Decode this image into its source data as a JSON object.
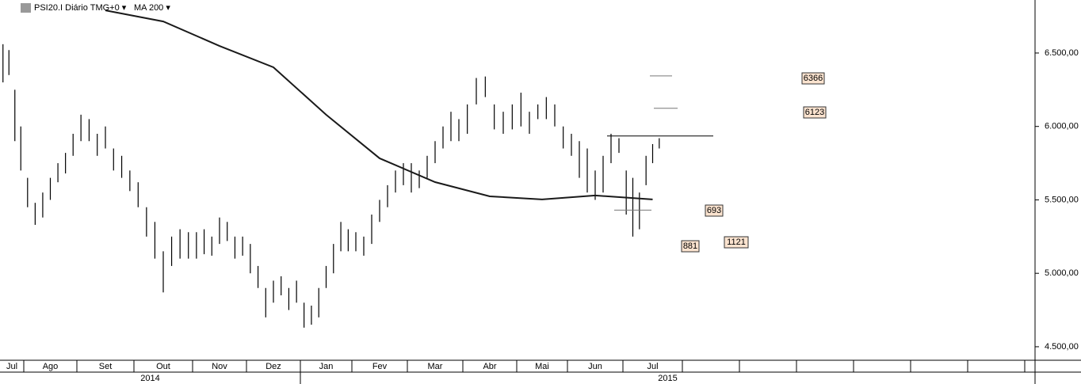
{
  "header": {
    "instrument": "PSI20.I Diário TMG+0",
    "indicator": "MA 200"
  },
  "chart_data": {
    "type": "ohlc",
    "ylim": [
      4408,
      6861
    ],
    "yticks": [
      {
        "value": 4500,
        "label": "4.500,00"
      },
      {
        "value": 5000,
        "label": "5.000,00"
      },
      {
        "value": 5500,
        "label": "5.500,00"
      },
      {
        "value": 6000,
        "label": "6.000,00"
      },
      {
        "value": 6500,
        "label": "6.500,00"
      }
    ],
    "color": "#000000",
    "ma_color": "#1a1a1a",
    "years": [
      {
        "label": "2014",
        "months": [
          {
            "label": "Jul",
            "ma": null,
            "bars": [
              {
                "high": 6560,
                "low": 6300
              },
              {
                "high": 6520,
                "low": 6350
              },
              {
                "high": 6250,
                "low": 5900
              },
              {
                "high": 6000,
                "low": 5700
              }
            ]
          },
          {
            "label": "Ago",
            "ma": null,
            "bars": [
              {
                "high": 5650,
                "low": 5450
              },
              {
                "high": 5480,
                "low": 5330
              },
              {
                "high": 5550,
                "low": 5380
              },
              {
                "high": 5650,
                "low": 5500
              },
              {
                "high": 5750,
                "low": 5620
              },
              {
                "high": 5820,
                "low": 5680
              },
              {
                "high": 5950,
                "low": 5800
              }
            ]
          },
          {
            "label": "Set",
            "ma": 6790,
            "bars": [
              {
                "high": 6080,
                "low": 5900
              },
              {
                "high": 6050,
                "low": 5900
              },
              {
                "high": 5950,
                "low": 5800
              },
              {
                "high": 6000,
                "low": 5850
              },
              {
                "high": 5850,
                "low": 5700
              },
              {
                "high": 5800,
                "low": 5650
              },
              {
                "high": 5700,
                "low": 5560
              }
            ]
          },
          {
            "label": "Out",
            "ma": 6715,
            "bars": [
              {
                "high": 5620,
                "low": 5450
              },
              {
                "high": 5450,
                "low": 5250
              },
              {
                "high": 5350,
                "low": 5100
              },
              {
                "high": 5150,
                "low": 4870
              },
              {
                "high": 5250,
                "low": 5050
              },
              {
                "high": 5300,
                "low": 5100
              },
              {
                "high": 5280,
                "low": 5100
              }
            ]
          },
          {
            "label": "Nov",
            "ma": 6548,
            "bars": [
              {
                "high": 5280,
                "low": 5100
              },
              {
                "high": 5300,
                "low": 5130
              },
              {
                "high": 5250,
                "low": 5120
              },
              {
                "high": 5380,
                "low": 5200
              },
              {
                "high": 5350,
                "low": 5220
              },
              {
                "high": 5250,
                "low": 5100
              },
              {
                "high": 5250,
                "low": 5120
              }
            ]
          },
          {
            "label": "Dez",
            "ma": 6403,
            "bars": [
              {
                "high": 5200,
                "low": 5000
              },
              {
                "high": 5050,
                "low": 4900
              },
              {
                "high": 4900,
                "low": 4700
              },
              {
                "high": 4950,
                "low": 4800
              },
              {
                "high": 4980,
                "low": 4850
              },
              {
                "high": 4900,
                "low": 4750
              },
              {
                "high": 4950,
                "low": 4800
              }
            ]
          }
        ]
      },
      {
        "label": "2015",
        "months": [
          {
            "label": "Jan",
            "ma": 6080,
            "bars": [
              {
                "high": 4800,
                "low": 4630
              },
              {
                "high": 4780,
                "low": 4650
              },
              {
                "high": 4900,
                "low": 4700
              },
              {
                "high": 5050,
                "low": 4900
              },
              {
                "high": 5200,
                "low": 5000
              },
              {
                "high": 5350,
                "low": 5150
              },
              {
                "high": 5300,
                "low": 5150
              }
            ]
          },
          {
            "label": "Fev",
            "ma": 5783,
            "bars": [
              {
                "high": 5280,
                "low": 5150
              },
              {
                "high": 5250,
                "low": 5120
              },
              {
                "high": 5400,
                "low": 5200
              },
              {
                "high": 5500,
                "low": 5350
              },
              {
                "high": 5600,
                "low": 5450
              },
              {
                "high": 5700,
                "low": 5550
              },
              {
                "high": 5750,
                "low": 5600
              }
            ]
          },
          {
            "label": "Mar",
            "ma": 5621,
            "bars": [
              {
                "high": 5750,
                "low": 5550
              },
              {
                "high": 5700,
                "low": 5580
              },
              {
                "high": 5800,
                "low": 5650
              },
              {
                "high": 5900,
                "low": 5750
              },
              {
                "high": 6000,
                "low": 5850
              },
              {
                "high": 6100,
                "low": 5900
              },
              {
                "high": 6050,
                "low": 5900
              }
            ]
          },
          {
            "label": "Abr",
            "ma": 5524,
            "bars": [
              {
                "high": 6150,
                "low": 5950
              },
              {
                "high": 6330,
                "low": 6150
              },
              {
                "high": 6340,
                "low": 6200
              },
              {
                "high": 6150,
                "low": 5980
              },
              {
                "high": 6100,
                "low": 5950
              },
              {
                "high": 6150,
                "low": 5980
              }
            ]
          },
          {
            "label": "Mai",
            "ma": 5503,
            "bars": [
              {
                "high": 6230,
                "low": 6000
              },
              {
                "high": 6100,
                "low": 5950
              },
              {
                "high": 6150,
                "low": 6050
              },
              {
                "high": 6200,
                "low": 6050
              },
              {
                "high": 6150,
                "low": 6000
              },
              {
                "high": 6000,
                "low": 5850
              }
            ]
          },
          {
            "label": "Jun",
            "ma": 5530,
            "bars": [
              {
                "high": 5950,
                "low": 5800
              },
              {
                "high": 5900,
                "low": 5650
              },
              {
                "high": 5850,
                "low": 5550
              },
              {
                "high": 5700,
                "low": 5500
              },
              {
                "high": 5800,
                "low": 5550
              },
              {
                "high": 5950,
                "low": 5750
              },
              {
                "high": 5920,
                "low": 5820
              }
            ]
          },
          {
            "label": "Jul",
            "ma": 5503,
            "bars": [
              {
                "high": 5700,
                "low": 5400
              },
              {
                "high": 5650,
                "low": 5250
              },
              {
                "high": 5550,
                "low": 5300
              },
              {
                "high": 5800,
                "low": 5600
              },
              {
                "high": 5880,
                "low": 5750
              },
              {
                "high": 5920,
                "low": 5850
              },
              null,
              null,
              null
            ]
          },
          {
            "label": null,
            "ma": null,
            "bars": []
          },
          {
            "label": null,
            "ma": null,
            "bars": []
          },
          {
            "label": null,
            "ma": null,
            "bars": []
          },
          {
            "label": null,
            "ma": null,
            "bars": []
          },
          {
            "label": null,
            "ma": null,
            "bars": []
          },
          {
            "label": null,
            "ma": null,
            "bars": []
          },
          {
            "label": null,
            "ma": null,
            "bars": []
          }
        ]
      }
    ],
    "levels": [
      6344,
      6124,
      5935,
      5430
    ],
    "annotations": [
      "6366",
      "6123",
      "693",
      "881",
      "1121"
    ]
  }
}
